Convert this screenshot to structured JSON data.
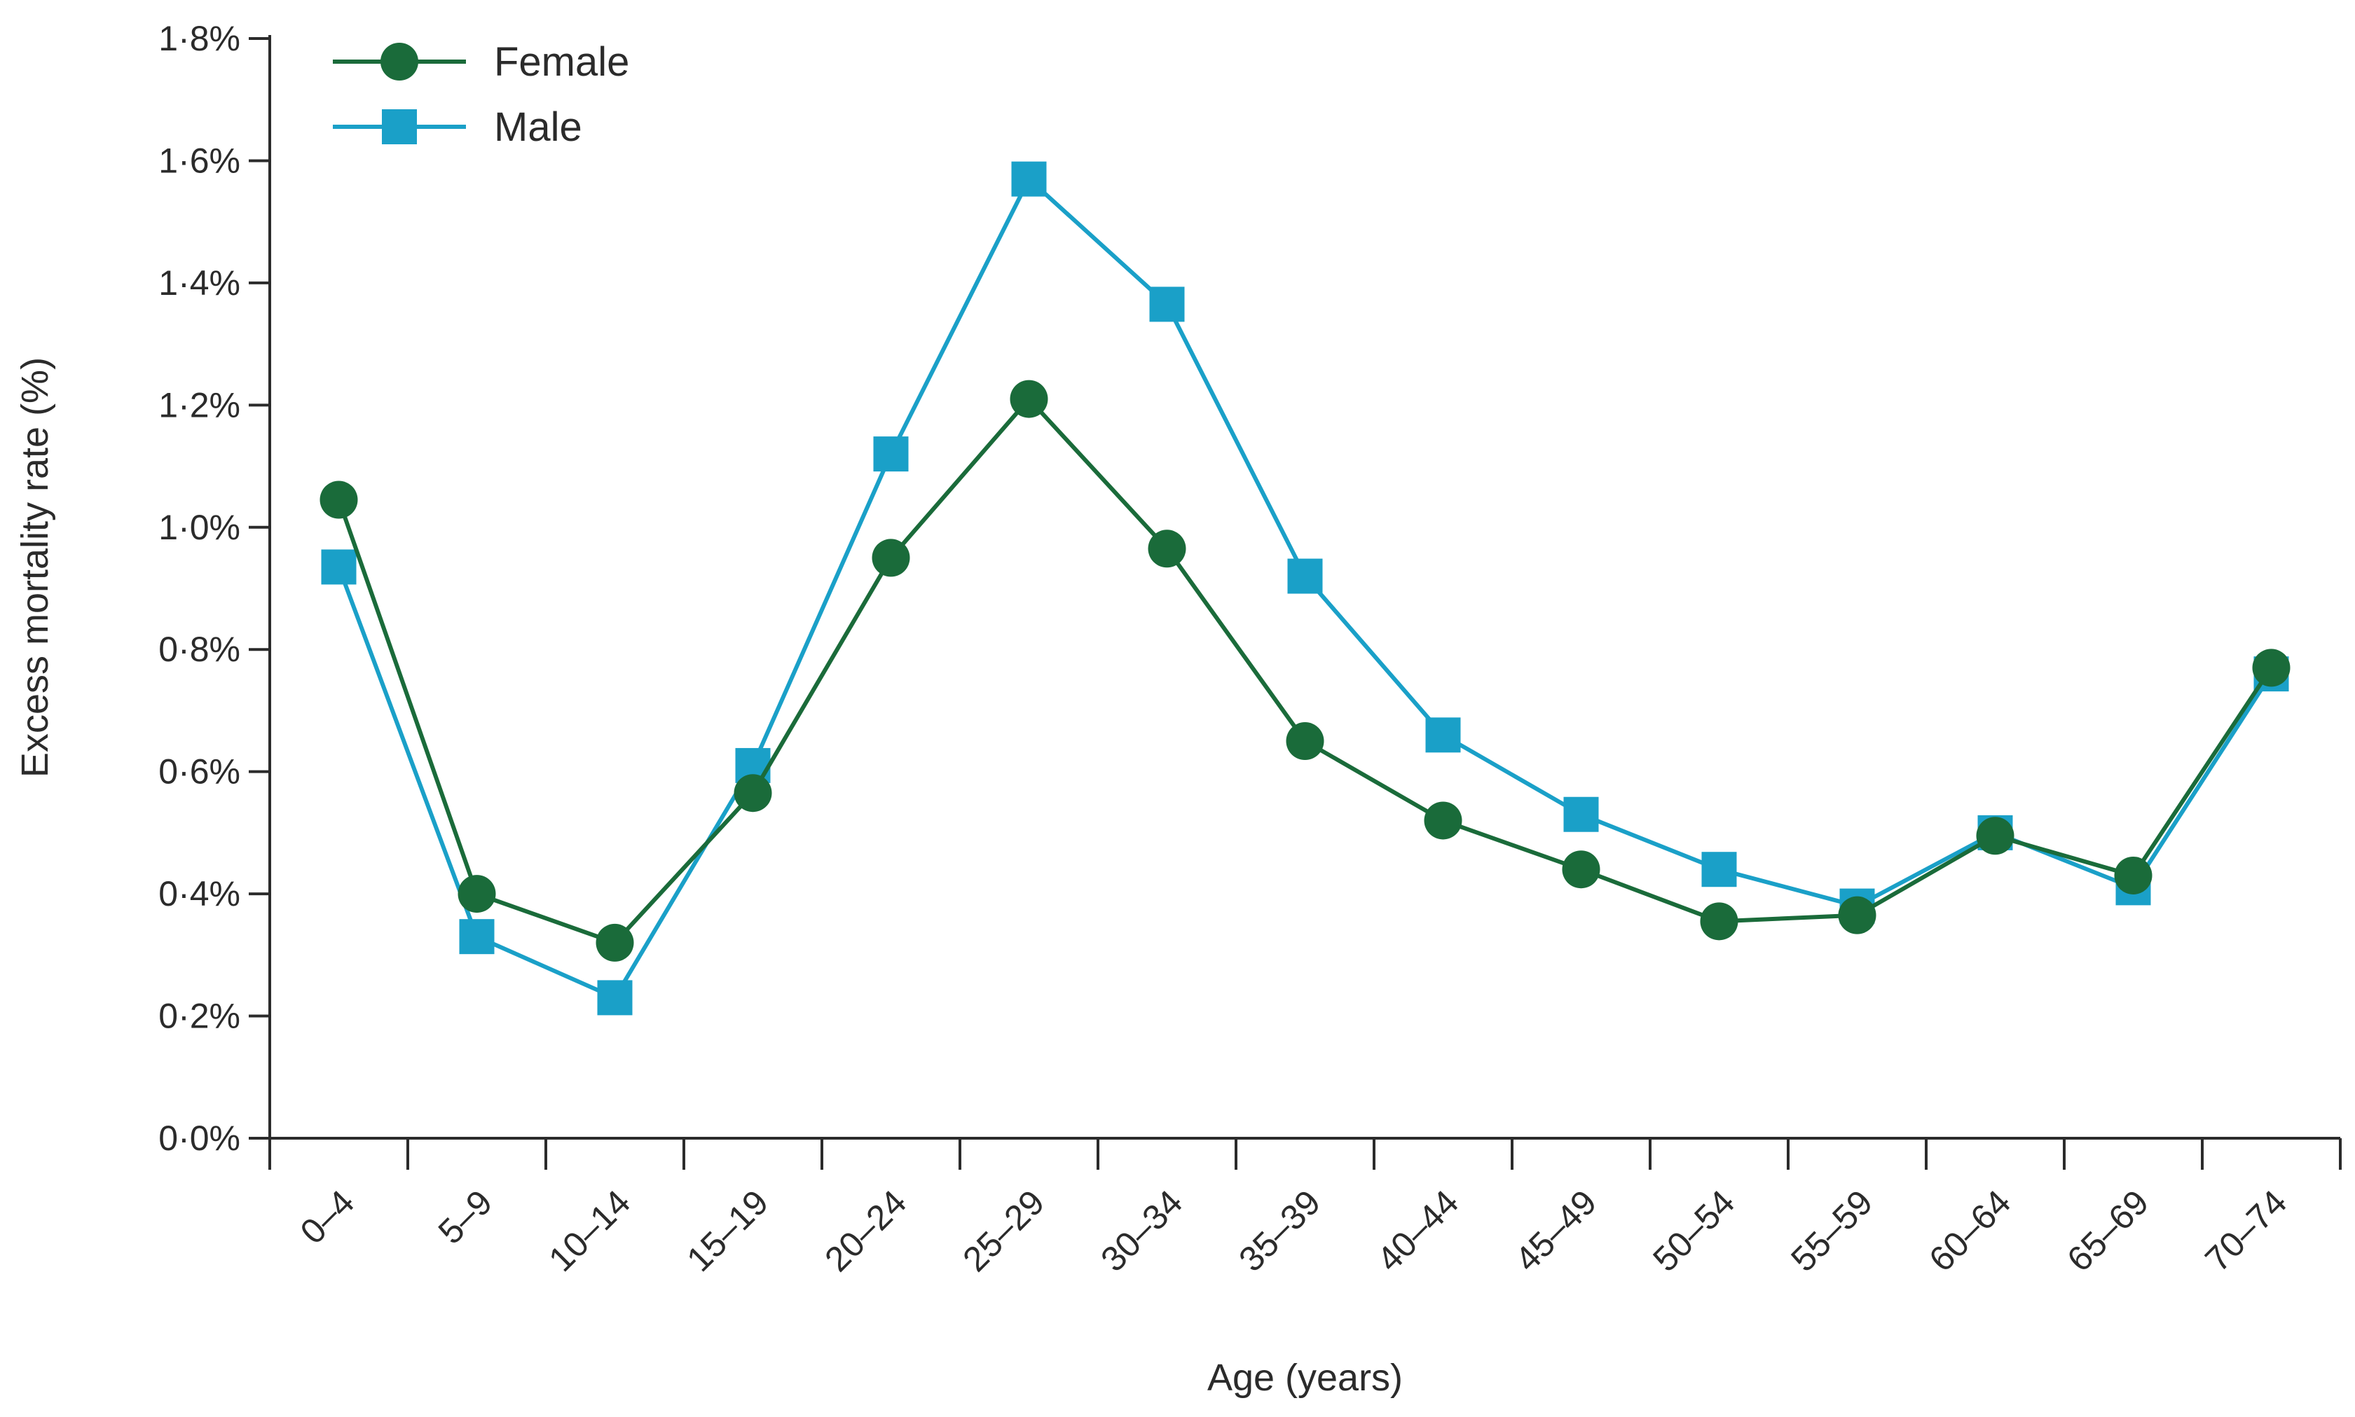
{
  "chart_data": {
    "type": "line",
    "title": "",
    "xlabel": "Age (years)",
    "ylabel": "Excess mortality rate (%)",
    "ylim": [
      0,
      1.8
    ],
    "y_ticks": [
      0.0,
      0.2,
      0.4,
      0.6,
      0.8,
      1.0,
      1.2,
      1.4,
      1.6,
      1.8
    ],
    "y_tick_labels": [
      "0·0%",
      "0·2%",
      "0·4%",
      "0·6%",
      "0·8%",
      "1·0%",
      "1·2%",
      "1·4%",
      "1·6%",
      "1·8%"
    ],
    "categories": [
      "0–4",
      "5–9",
      "10–14",
      "15–19",
      "20–24",
      "25–29",
      "30–34",
      "35–39",
      "40–44",
      "45–49",
      "50–54",
      "55–59",
      "60–64",
      "65–69",
      "70–74"
    ],
    "grid": false,
    "legend_position": "top-left",
    "series": [
      {
        "name": "Female",
        "color": "#1a6b3a",
        "marker": "circle",
        "values": [
          1.045,
          0.4,
          0.32,
          0.565,
          0.95,
          1.21,
          0.965,
          0.65,
          0.52,
          0.44,
          0.355,
          0.365,
          0.495,
          0.43,
          0.77
        ]
      },
      {
        "name": "Male",
        "color": "#1aa0c8",
        "marker": "square",
        "values": [
          0.935,
          0.33,
          0.23,
          0.61,
          1.12,
          1.57,
          1.365,
          0.92,
          0.66,
          0.53,
          0.44,
          0.38,
          0.5,
          0.41,
          0.76
        ]
      }
    ]
  }
}
